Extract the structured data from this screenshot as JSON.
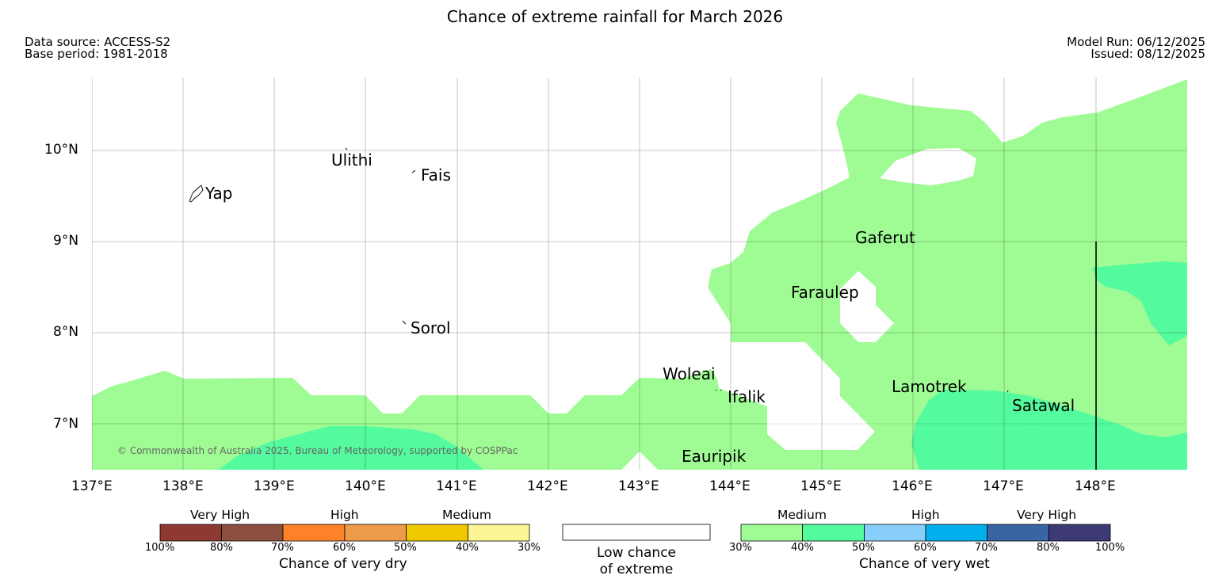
{
  "header": {
    "title": "Chance of extreme rainfall for March 2026",
    "data_source": "Data source: ACCESS-S2",
    "base_period": "Base period: 1981-2018",
    "model_run": "Model Run: 06/12/2025",
    "issued": "Issued: 08/12/2025"
  },
  "map": {
    "lat_labels": [
      "10°N",
      "9°N",
      "8°N",
      "7°N"
    ],
    "lon_labels": [
      "137°E",
      "138°E",
      "139°E",
      "140°E",
      "141°E",
      "142°E",
      "143°E",
      "144°E",
      "145°E",
      "146°E",
      "147°E",
      "148°E"
    ],
    "places": {
      "yap": "Yap",
      "ulithi": "Ulithi",
      "fais": "Fais",
      "sorol": "Sorol",
      "gaferut": "Gaferut",
      "faraulep": "Faraulep",
      "woleai": "Woleai",
      "ifalik": "Ifalik",
      "eauripik": "Eauripik",
      "lamotrek": "Lamotrek",
      "satawal": "Satawal"
    },
    "credit": "© Commonwealth of Australia 2025, Bureau of Meteorology, supported by COSPPac",
    "colors": {
      "wet_medium_30_40": "#9ffc94",
      "wet_medium_40_50": "#53fa9e"
    }
  },
  "legend": {
    "dry": {
      "categories": [
        "Very High",
        "High",
        "Medium"
      ],
      "ticks": [
        "100%",
        "80%",
        "70%",
        "60%",
        "50%",
        "40%",
        "30%"
      ],
      "colors": [
        "#8e3a32",
        "#8d4f3f",
        "#fe8229",
        "#ef9c4a",
        "#f0c800",
        "#fef594"
      ],
      "title": "Chance of very dry"
    },
    "neutral": {
      "line1": "Low chance",
      "line2": "of extreme",
      "color": "#ffffff"
    },
    "wet": {
      "categories": [
        "Medium",
        "High",
        "Very High"
      ],
      "ticks": [
        "30%",
        "40%",
        "50%",
        "60%",
        "70%",
        "80%",
        "100%"
      ],
      "colors": [
        "#9ffc94",
        "#53fa9e",
        "#87cefa",
        "#00b0ed",
        "#3a64a4",
        "#3e3a76"
      ],
      "title": "Chance of very wet"
    }
  }
}
